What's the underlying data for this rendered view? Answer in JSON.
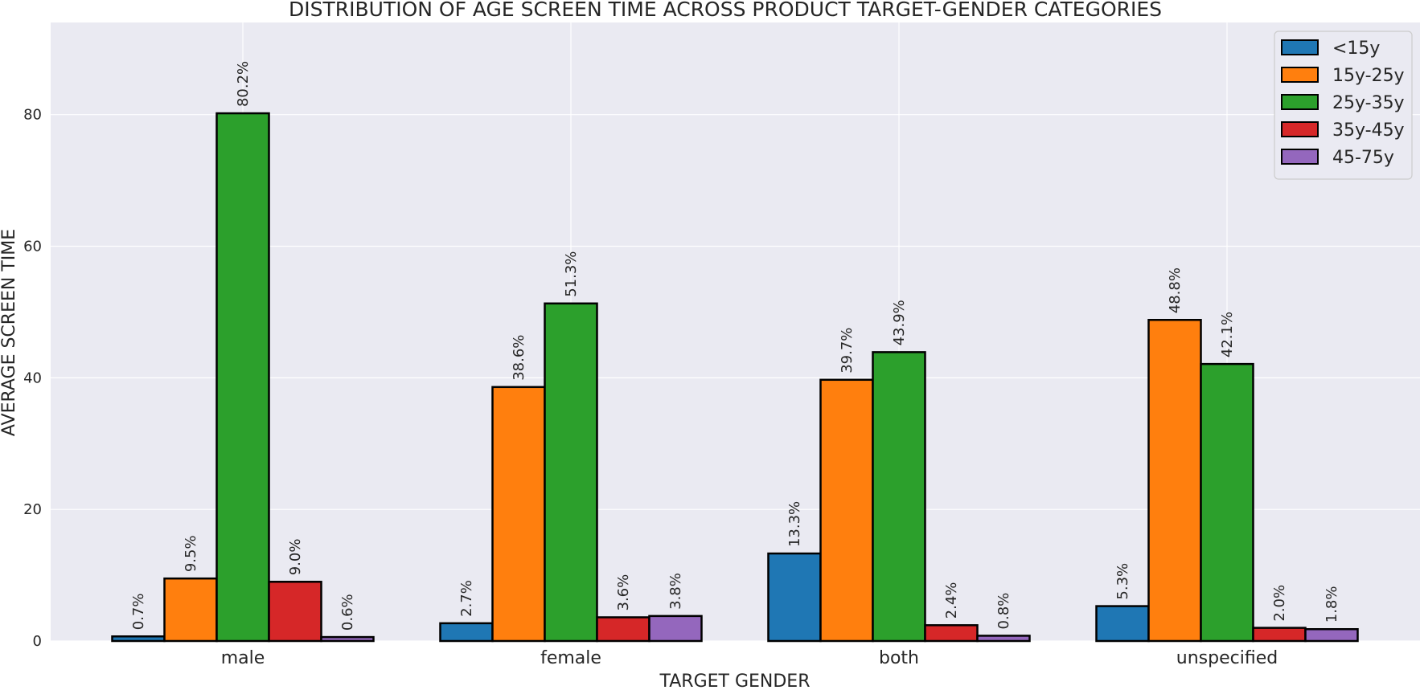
{
  "chart_data": {
    "type": "bar",
    "title": "DISTRIBUTION OF AGE SCREEN TIME ACROSS PRODUCT TARGET-GENDER CATEGORIES",
    "xlabel": "TARGET GENDER",
    "ylabel": "AVERAGE SCREEN TIME",
    "categories": [
      "male",
      "female",
      "both",
      "unspecified"
    ],
    "ylim": [
      0,
      94
    ],
    "yticks": [
      0,
      20,
      40,
      60,
      80
    ],
    "grid": true,
    "legend_position": "top-right",
    "series": [
      {
        "name": "<15y",
        "color": "#1f77b4",
        "values": [
          0.7,
          2.7,
          13.3,
          5.3
        ],
        "labels": [
          "0.7%",
          "2.7%",
          "13.3%",
          "5.3%"
        ]
      },
      {
        "name": "15y-25y",
        "color": "#ff7f0e",
        "values": [
          9.5,
          38.6,
          39.7,
          48.8
        ],
        "labels": [
          "9.5%",
          "38.6%",
          "39.7%",
          "48.8%"
        ]
      },
      {
        "name": "25y-35y",
        "color": "#2ca02c",
        "values": [
          80.2,
          51.3,
          43.9,
          42.1
        ],
        "labels": [
          "80.2%",
          "51.3%",
          "43.9%",
          "42.1%"
        ]
      },
      {
        "name": "35y-45y",
        "color": "#d62728",
        "values": [
          9.0,
          3.6,
          2.4,
          2.0
        ],
        "labels": [
          "9.0%",
          "3.6%",
          "2.4%",
          "2.0%"
        ]
      },
      {
        "name": "45-75y",
        "color": "#9467bd",
        "values": [
          0.6,
          3.8,
          0.8,
          1.8
        ],
        "labels": [
          "0.6%",
          "3.8%",
          "0.8%",
          "1.8%"
        ]
      }
    ]
  }
}
